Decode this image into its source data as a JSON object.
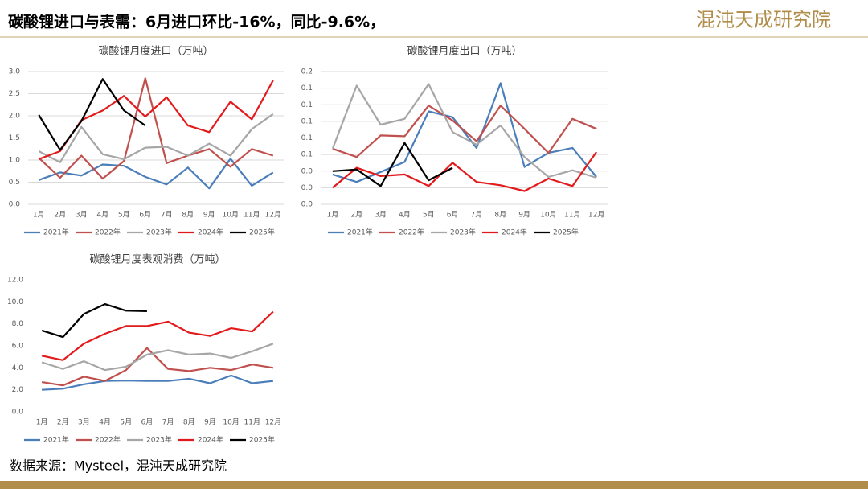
{
  "header": {
    "title": "碳酸锂进口与表需：6月进口环比-16%，同比-9.6%，",
    "logo": "混沌天成研究院"
  },
  "source": "数据来源：Mysteel，混沌天成研究院",
  "chart_data": [
    {
      "type": "line",
      "title": "碳酸锂月度进口（万吨）",
      "categories": [
        "1月",
        "2月",
        "3月",
        "4月",
        "5月",
        "6月",
        "7月",
        "8月",
        "9月",
        "10月",
        "11月",
        "12月"
      ],
      "ylim": [
        0,
        3
      ],
      "yticks": [
        {
          "value": 0,
          "label": "0.0"
        },
        {
          "value": 0.5,
          "label": "0.5"
        },
        {
          "value": 1,
          "label": "1.0"
        },
        {
          "value": 1.5,
          "label": "1.5"
        },
        {
          "value": 2,
          "label": "2.0"
        },
        {
          "value": 2.5,
          "label": "2.5"
        },
        {
          "value": 3,
          "label": "3.0"
        }
      ],
      "grid": true,
      "series": [
        {
          "name": "2021年",
          "color": "#4a7ebb",
          "values": [
            0.55,
            0.72,
            0.65,
            0.9,
            0.87,
            0.62,
            0.45,
            0.83,
            0.36,
            1.03,
            0.42,
            0.72
          ]
        },
        {
          "name": "2022年",
          "color": "#c0504d",
          "values": [
            1.05,
            0.6,
            1.1,
            0.58,
            0.98,
            2.85,
            0.93,
            1.1,
            1.25,
            0.85,
            1.25,
            1.1
          ]
        },
        {
          "name": "2023年",
          "color": "#a6a6a6",
          "values": [
            1.2,
            0.95,
            1.75,
            1.13,
            1.02,
            1.28,
            1.3,
            1.1,
            1.37,
            1.1,
            1.7,
            2.04
          ]
        },
        {
          "name": "2024年",
          "color": "#e31a1c",
          "values": [
            1.02,
            1.2,
            1.9,
            2.12,
            2.45,
            1.98,
            2.42,
            1.78,
            1.63,
            2.32,
            1.92,
            2.8
          ]
        },
        {
          "name": "2025年",
          "color": "#000000",
          "values": [
            2.02,
            1.23,
            1.88,
            2.83,
            2.12,
            1.78,
            null,
            null,
            null,
            null,
            null,
            null
          ]
        }
      ]
    },
    {
      "type": "line",
      "title": "碳酸锂月度出口（万吨）",
      "categories": [
        "1月",
        "2月",
        "3月",
        "4月",
        "5月",
        "6月",
        "7月",
        "8月",
        "9月",
        "10月",
        "11月",
        "12月"
      ],
      "ylim": [
        0,
        0.16
      ],
      "yticks": [
        {
          "value": 0,
          "label": "0.0"
        },
        {
          "value": 0.02,
          "label": "0.0"
        },
        {
          "value": 0.04,
          "label": "0.0"
        },
        {
          "value": 0.06,
          "label": "0.1"
        },
        {
          "value": 0.08,
          "label": "0.1"
        },
        {
          "value": 0.1,
          "label": "0.1"
        },
        {
          "value": 0.12,
          "label": "0.1"
        },
        {
          "value": 0.14,
          "label": "0.1"
        },
        {
          "value": 0.16,
          "label": "0.2"
        }
      ],
      "grid": true,
      "series": [
        {
          "name": "2021年",
          "color": "#4a7ebb",
          "values": [
            0.036,
            0.027,
            0.039,
            0.051,
            0.112,
            0.105,
            0.068,
            0.146,
            0.045,
            0.062,
            0.068,
            0.033
          ]
        },
        {
          "name": "2022年",
          "color": "#c0504d",
          "values": [
            0.067,
            0.057,
            0.083,
            0.082,
            0.119,
            0.101,
            0.076,
            0.119,
            0.091,
            0.062,
            0.103,
            0.091
          ]
        },
        {
          "name": "2023年",
          "color": "#a6a6a6",
          "values": [
            0.067,
            0.143,
            0.096,
            0.103,
            0.145,
            0.087,
            0.072,
            0.095,
            0.057,
            0.033,
            0.041,
            0.032
          ]
        },
        {
          "name": "2024年",
          "color": "#e31a1c",
          "values": [
            0.02,
            0.044,
            0.034,
            0.036,
            0.022,
            0.05,
            0.027,
            0.023,
            0.016,
            0.031,
            0.022,
            0.063
          ]
        },
        {
          "name": "2025年",
          "color": "#000000",
          "values": [
            0.04,
            0.042,
            0.022,
            0.074,
            0.029,
            0.044,
            null,
            null,
            null,
            null,
            null,
            null
          ]
        }
      ]
    },
    {
      "type": "line",
      "title": "碳酸锂月度表观消费（万吨）",
      "categories": [
        "1月",
        "2月",
        "3月",
        "4月",
        "5月",
        "6月",
        "7月",
        "8月",
        "9月",
        "10月",
        "11月",
        "12月"
      ],
      "ylim": [
        0,
        12
      ],
      "yticks": [
        {
          "value": 0,
          "label": "0.0"
        },
        {
          "value": 2,
          "label": "2.0"
        },
        {
          "value": 4,
          "label": "4.0"
        },
        {
          "value": 6,
          "label": "6.0"
        },
        {
          "value": 8,
          "label": "8.0"
        },
        {
          "value": 10,
          "label": "10.0"
        },
        {
          "value": 12,
          "label": "12.0"
        }
      ],
      "grid": false,
      "series": [
        {
          "name": "2021年",
          "color": "#4a7ebb",
          "values": [
            2.0,
            2.1,
            2.5,
            2.8,
            2.85,
            2.8,
            2.8,
            3.0,
            2.6,
            3.3,
            2.6,
            2.8
          ]
        },
        {
          "name": "2022年",
          "color": "#c0504d",
          "values": [
            2.7,
            2.4,
            3.2,
            2.8,
            3.8,
            5.8,
            3.9,
            3.7,
            4.0,
            3.8,
            4.3,
            4.0
          ]
        },
        {
          "name": "2023年",
          "color": "#a6a6a6",
          "values": [
            4.5,
            3.9,
            4.6,
            3.8,
            4.1,
            5.2,
            5.6,
            5.2,
            5.3,
            4.9,
            5.5,
            6.2
          ]
        },
        {
          "name": "2024年",
          "color": "#e31a1c",
          "values": [
            5.1,
            4.7,
            6.2,
            7.1,
            7.8,
            7.8,
            8.2,
            7.2,
            6.9,
            7.6,
            7.3,
            9.1
          ]
        },
        {
          "name": "2025年",
          "color": "#000000",
          "values": [
            7.4,
            6.8,
            8.9,
            9.8,
            9.2,
            9.15,
            null,
            null,
            null,
            null,
            null,
            null
          ]
        }
      ]
    }
  ]
}
